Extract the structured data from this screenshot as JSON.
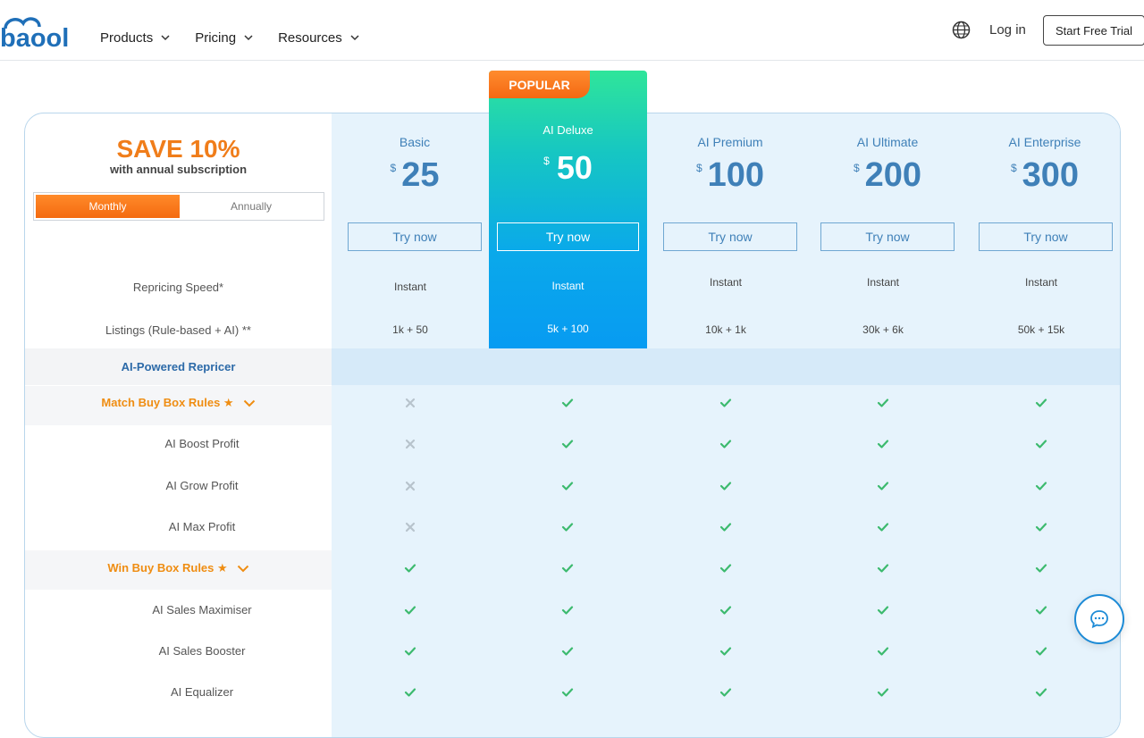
{
  "header": {
    "logo_text": "baool",
    "nav": [
      {
        "label": "Products"
      },
      {
        "label": "Pricing"
      },
      {
        "label": "Resources"
      }
    ],
    "login": "Log in",
    "trial": "Start Free Trial",
    "icons": {
      "language": "globe-icon"
    }
  },
  "promo": {
    "save": "SAVE 10%",
    "sub": "with annual subscription",
    "toggle": {
      "monthly": "Monthly",
      "annually": "Annually",
      "selected": "Monthly"
    }
  },
  "plans": [
    {
      "name": "Basic",
      "currency": "$",
      "price": "25",
      "cta": "Try now",
      "speed": "Instant",
      "listings": "1k + 50"
    },
    {
      "name": "AI Deluxe",
      "currency": "$",
      "price": "50",
      "cta": "Try now",
      "speed": "Instant",
      "listings": "5k + 100",
      "badge": "POPULAR"
    },
    {
      "name": "AI Premium",
      "currency": "$",
      "price": "100",
      "cta": "Try now",
      "speed": "Instant",
      "listings": "10k + 1k"
    },
    {
      "name": "AI Ultimate",
      "currency": "$",
      "price": "200",
      "cta": "Try now",
      "speed": "Instant",
      "listings": "30k + 6k"
    },
    {
      "name": "AI Enterprise",
      "currency": "$",
      "price": "300",
      "cta": "Try now",
      "speed": "Instant",
      "listings": "50k + 15k"
    }
  ],
  "rows": {
    "speed": "Repricing Speed*",
    "listings": "Listings (Rule-based + AI) **",
    "section": "AI-Powered Repricer"
  },
  "features": [
    {
      "label": "Match Buy Box Rules ★",
      "group": true,
      "values": [
        false,
        true,
        true,
        true,
        true
      ]
    },
    {
      "label": "AI Boost Profit",
      "group": false,
      "values": [
        false,
        true,
        true,
        true,
        true
      ]
    },
    {
      "label": "AI Grow Profit",
      "group": false,
      "values": [
        false,
        true,
        true,
        true,
        true
      ]
    },
    {
      "label": "AI Max Profit",
      "group": false,
      "values": [
        false,
        true,
        true,
        true,
        true
      ]
    },
    {
      "label": "Win Buy Box Rules ★",
      "group": true,
      "values": [
        true,
        true,
        true,
        true,
        true
      ]
    },
    {
      "label": "AI Sales Maximiser",
      "group": false,
      "values": [
        true,
        true,
        true,
        true,
        true
      ]
    },
    {
      "label": "AI Sales Booster",
      "group": false,
      "values": [
        true,
        true,
        true,
        true,
        true
      ]
    },
    {
      "label": "AI Equalizer",
      "group": false,
      "values": [
        true,
        true,
        true,
        true,
        true
      ]
    }
  ],
  "colors": {
    "accent": "#f07d1a",
    "check": "#3cba6e",
    "cross": "#b7c3cc",
    "blue": "#3f80b8"
  },
  "chat": {
    "icon": "chat-bubble-icon"
  }
}
